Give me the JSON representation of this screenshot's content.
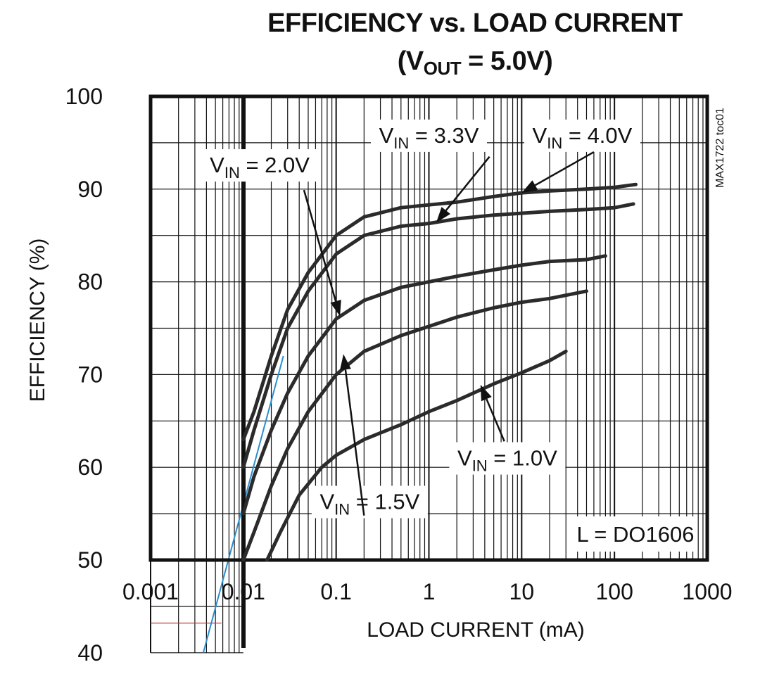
{
  "chart_data": {
    "type": "line",
    "title": "EFFICIENCY vs. LOAD CURRENT",
    "subtitle": {
      "prefix": "(V",
      "sub": "OUT",
      "suffix": " = 5.0V)"
    },
    "xlabel": "LOAD CURRENT (mA)",
    "ylabel": "EFFICIENCY (%)",
    "xscale": "log",
    "xlim": [
      0.001,
      1000
    ],
    "ylim": [
      50,
      100
    ],
    "x_ticks": [
      "0.001",
      "0.01",
      "0.1",
      "1",
      "10",
      "100",
      "1000"
    ],
    "y_ticks": [
      "40",
      "50",
      "60",
      "70",
      "80",
      "90",
      "100"
    ],
    "grid": true,
    "side_note": "MAX1722 toc01",
    "inductor_note": "L = DO1606",
    "series": [
      {
        "label": {
          "pre": "V",
          "sub": "IN",
          "post": " = 4.0V"
        },
        "x": [
          0.01,
          0.013,
          0.02,
          0.03,
          0.05,
          0.1,
          0.2,
          0.5,
          1,
          2,
          5,
          10,
          20,
          50,
          100,
          170
        ],
        "y": [
          63,
          66,
          72,
          77,
          81,
          85,
          87,
          88,
          88.3,
          88.6,
          89.2,
          89.6,
          89.8,
          90,
          90.2,
          90.5
        ]
      },
      {
        "label": {
          "pre": "V",
          "sub": "IN",
          "post": " = 3.3V"
        },
        "x": [
          0.01,
          0.013,
          0.02,
          0.03,
          0.05,
          0.1,
          0.2,
          0.5,
          1,
          2,
          5,
          10,
          20,
          50,
          100,
          160
        ],
        "y": [
          60,
          64,
          70,
          75,
          79,
          83,
          85,
          86,
          86.3,
          86.8,
          87.2,
          87.4,
          87.6,
          87.8,
          88,
          88.4
        ]
      },
      {
        "label": {
          "pre": "V",
          "sub": "IN",
          "post": " = 2.0V"
        },
        "x": [
          0.01,
          0.013,
          0.02,
          0.03,
          0.05,
          0.1,
          0.2,
          0.5,
          1,
          2,
          5,
          10,
          20,
          50,
          80
        ],
        "y": [
          55,
          59,
          64,
          68,
          72,
          76,
          78,
          79.4,
          80,
          80.6,
          81.3,
          81.8,
          82.2,
          82.4,
          82.8
        ]
      },
      {
        "label": {
          "pre": "V",
          "sub": "IN",
          "post": " = 1.5V"
        },
        "x": [
          0.01,
          0.013,
          0.02,
          0.03,
          0.05,
          0.1,
          0.2,
          0.5,
          1,
          2,
          5,
          10,
          20,
          50
        ],
        "y": [
          50,
          53,
          58,
          62,
          66,
          70,
          72.5,
          74.2,
          75.2,
          76.2,
          77.2,
          77.8,
          78.2,
          79
        ]
      },
      {
        "label": {
          "pre": "V",
          "sub": "IN",
          "post": " = 1.0V"
        },
        "x": [
          0.018,
          0.025,
          0.04,
          0.07,
          0.1,
          0.2,
          0.5,
          1,
          2,
          5,
          10,
          20,
          30
        ],
        "y": [
          50,
          53,
          57,
          60,
          61.3,
          63,
          64.6,
          66,
          67.2,
          69,
          70.2,
          71.5,
          72.5
        ]
      }
    ]
  }
}
